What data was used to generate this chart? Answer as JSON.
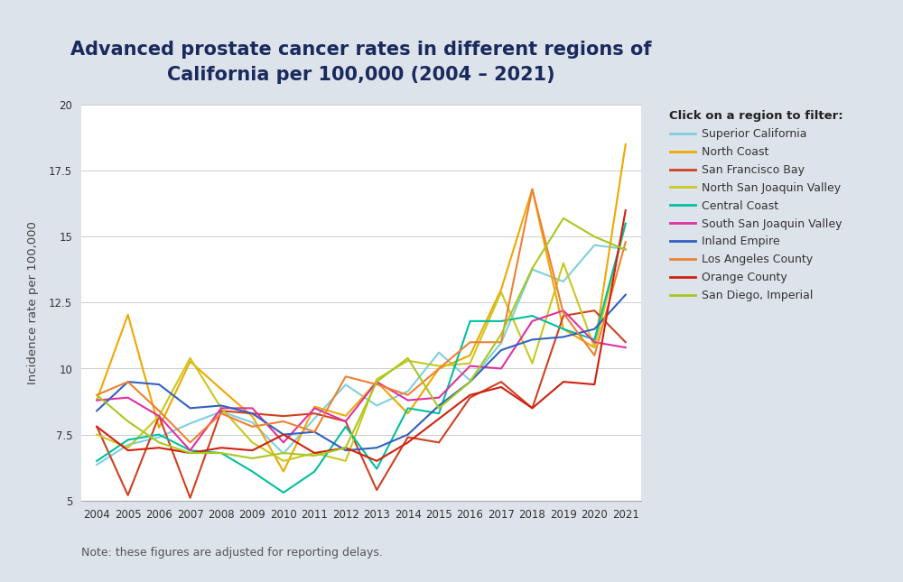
{
  "title": "Advanced prostate cancer rates in different regions of\nCalifornia per 100,000 (2004 – 2021)",
  "ylabel": "Incidence rate per 100,000",
  "note": "Note: these figures are adjusted for reporting delays.",
  "legend_title": "Click on a region to filter:",
  "years": [
    2004,
    2005,
    2006,
    2007,
    2008,
    2009,
    2010,
    2011,
    2012,
    2013,
    2014,
    2015,
    2016,
    2017,
    2018,
    2019,
    2020,
    2021
  ],
  "ylim": [
    5,
    20
  ],
  "yticks": [
    5,
    7.5,
    10,
    12.5,
    15,
    17.5,
    20
  ],
  "background_color": "#dde3ea",
  "plot_bg_color": "#ffffff",
  "title_color": "#1a2a5e",
  "series": [
    {
      "name": "Superior California",
      "color": "#7ecfe0",
      "values": [
        6.36,
        7.11,
        7.4,
        7.92,
        8.37,
        7.96,
        6.78,
        8.11,
        9.39,
        8.6,
        9.14,
        10.61,
        9.55,
        10.97,
        13.76,
        13.3,
        14.68,
        14.53
      ]
    },
    {
      "name": "North Coast",
      "color": "#f0a800",
      "values": [
        8.81,
        12.04,
        7.76,
        10.27,
        9.22,
        8.19,
        6.1,
        8.56,
        8.21,
        9.5,
        8.3,
        10.0,
        10.5,
        13.0,
        16.8,
        11.5,
        10.8,
        18.5
      ]
    },
    {
      "name": "San Francisco Bay",
      "color": "#d04020",
      "values": [
        7.8,
        5.2,
        8.2,
        5.1,
        8.4,
        8.3,
        8.2,
        8.3,
        8.0,
        5.4,
        7.4,
        7.2,
        8.9,
        9.5,
        8.5,
        12.0,
        12.2,
        11.0
      ]
    },
    {
      "name": "North San Joaquin Valley",
      "color": "#c8c820",
      "values": [
        7.5,
        7.0,
        8.2,
        10.4,
        8.5,
        7.2,
        6.5,
        6.8,
        6.5,
        9.6,
        10.3,
        10.1,
        10.2,
        12.9,
        10.2,
        14.0,
        10.8,
        15.5
      ]
    },
    {
      "name": "Central Coast",
      "color": "#00c0a0",
      "values": [
        6.5,
        7.3,
        7.5,
        6.9,
        6.8,
        6.1,
        5.3,
        6.1,
        7.8,
        6.2,
        8.5,
        8.3,
        11.8,
        11.8,
        12.0,
        11.5,
        11.1,
        15.5
      ]
    },
    {
      "name": "South San Joaquin Valley",
      "color": "#e030a0",
      "values": [
        8.8,
        8.9,
        8.2,
        6.9,
        8.5,
        8.5,
        7.2,
        8.5,
        8.0,
        9.5,
        8.8,
        8.9,
        10.1,
        10.0,
        11.8,
        12.2,
        11.0,
        10.8
      ]
    },
    {
      "name": "Inland Empire",
      "color": "#3060c0",
      "values": [
        8.4,
        9.5,
        9.4,
        8.5,
        8.6,
        8.3,
        7.5,
        7.6,
        6.9,
        7.0,
        7.5,
        8.6,
        9.5,
        10.7,
        11.1,
        11.2,
        11.5,
        12.8
      ]
    },
    {
      "name": "Los Angeles County",
      "color": "#f08030",
      "values": [
        9.0,
        9.5,
        8.4,
        7.2,
        8.3,
        7.8,
        8.0,
        7.6,
        9.7,
        9.4,
        9.0,
        10.0,
        11.0,
        11.0,
        16.8,
        12.1,
        10.5,
        14.8
      ]
    },
    {
      "name": "Orange County",
      "color": "#d02010",
      "values": [
        7.8,
        6.9,
        7.0,
        6.8,
        7.0,
        6.9,
        7.5,
        6.8,
        7.0,
        6.5,
        7.2,
        8.1,
        9.0,
        9.3,
        8.5,
        9.5,
        9.4,
        16.0
      ]
    },
    {
      "name": "San Diego, Imperial",
      "color": "#a8c820",
      "values": [
        9.0,
        8.0,
        7.2,
        6.8,
        6.8,
        6.6,
        6.8,
        6.7,
        7.0,
        9.5,
        10.4,
        8.5,
        9.5,
        11.3,
        13.8,
        15.7,
        15.0,
        14.5
      ]
    }
  ]
}
